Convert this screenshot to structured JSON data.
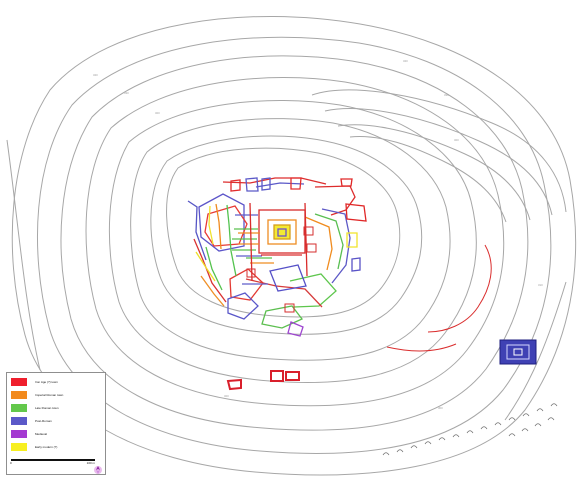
{
  "map": {
    "legend": {
      "items": [
        {
          "label": "Iron Age (?) town",
          "color": "#ef1f2d"
        },
        {
          "label": "Imperial Roman town",
          "color": "#f28a1d"
        },
        {
          "label": "Late Roman town",
          "color": "#63c84b"
        },
        {
          "label": "Post-Roman",
          "color": "#5b59c8"
        },
        {
          "label": "Medieval",
          "color": "#a43ad1"
        },
        {
          "label": "Early modern (?)",
          "color": "#f7ef21"
        }
      ],
      "scale": {
        "start": "0",
        "mid": "",
        "end": "100 m"
      }
    }
  }
}
